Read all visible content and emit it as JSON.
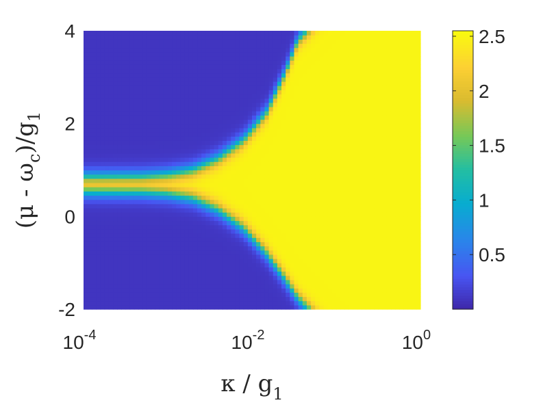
{
  "chart_data": {
    "type": "heatmap",
    "title": "",
    "xlabel": {
      "main": "κ / g",
      "sub": "1"
    },
    "ylabel": {
      "parts": [
        {
          "text": "(μ - ω"
        },
        {
          "text": "c",
          "sub": true
        },
        {
          "text": ")/g"
        },
        {
          "text": "1",
          "sub": true
        }
      ]
    },
    "x_scale": "log",
    "xlim": [
      0.0001,
      1
    ],
    "ylim": [
      -2,
      4
    ],
    "x_ticks": [
      {
        "value": 0.0001,
        "base": "10",
        "exp": "-4"
      },
      {
        "value": 0.01,
        "base": "10",
        "exp": "-2"
      },
      {
        "value": 1,
        "base": "10",
        "exp": "0"
      }
    ],
    "y_ticks": [
      {
        "value": -2,
        "label": "-2"
      },
      {
        "value": 0,
        "label": "0"
      },
      {
        "value": 2,
        "label": "2"
      },
      {
        "value": 4,
        "label": "4"
      }
    ],
    "colormap": "parula",
    "clim": [
      0,
      2.55
    ],
    "colorbar_ticks": [
      {
        "value": 0.5,
        "label": "0.5"
      },
      {
        "value": 1,
        "label": "1"
      },
      {
        "value": 1.5,
        "label": "1.5"
      },
      {
        "value": 2,
        "label": "2"
      },
      {
        "value": 2.5,
        "label": "2.5"
      }
    ],
    "low_value": 0.1,
    "high_value": 2.5,
    "band_center_y": 0.68,
    "upper_boundary": {
      "x": [
        0.0001,
        0.0005,
        0.001,
        0.002,
        0.004,
        0.008,
        0.015,
        0.025,
        0.035,
        0.045
      ],
      "y": [
        0.85,
        0.86,
        0.9,
        1.0,
        1.25,
        1.65,
        2.25,
        3.1,
        3.8,
        4.0
      ]
    },
    "lower_boundary": {
      "x": [
        0.0001,
        0.0005,
        0.001,
        0.002,
        0.004,
        0.008,
        0.015,
        0.025,
        0.035,
        0.048
      ],
      "y": [
        0.55,
        0.54,
        0.5,
        0.4,
        0.15,
        -0.25,
        -0.8,
        -1.35,
        -1.75,
        -2.0
      ]
    },
    "grid": false,
    "legend": "none"
  }
}
